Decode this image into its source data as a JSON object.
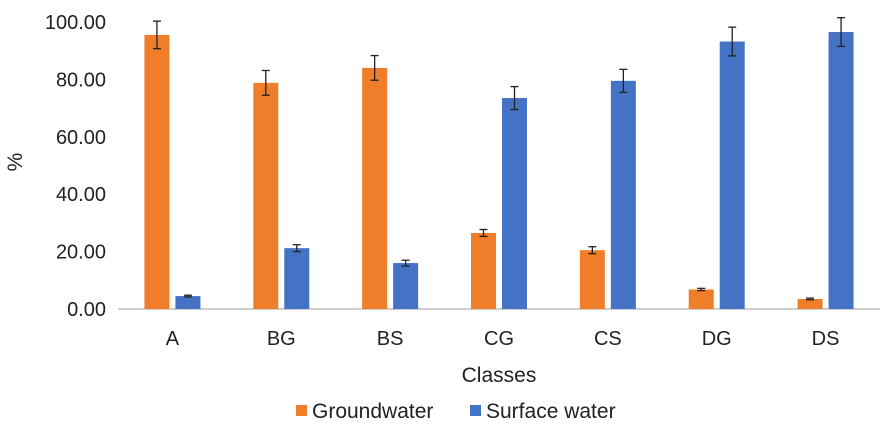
{
  "chart_data": {
    "type": "bar",
    "title": "",
    "xlabel": "Classes",
    "ylabel": "%",
    "ylim": [
      0,
      100
    ],
    "y_ticks": [
      "0.00",
      "20.00",
      "40.00",
      "60.00",
      "80.00",
      "100.00"
    ],
    "grid": false,
    "legend_position": "bottom",
    "categories": [
      "A",
      "BG",
      "BS",
      "CG",
      "CS",
      "DG",
      "DS"
    ],
    "series": [
      {
        "name": "Groundwater",
        "color": "#F07D2A",
        "values": [
          95.5,
          78.8,
          84.0,
          26.5,
          20.5,
          6.8,
          3.5
        ],
        "error": [
          4.8,
          4.3,
          4.3,
          1.2,
          1.2,
          0.4,
          0.3
        ]
      },
      {
        "name": "Surface water",
        "color": "#4472C4",
        "values": [
          4.5,
          21.2,
          16.0,
          73.5,
          79.5,
          93.2,
          96.5
        ],
        "error": [
          0.3,
          1.2,
          1.0,
          4.0,
          4.0,
          5.0,
          5.0
        ]
      }
    ]
  }
}
